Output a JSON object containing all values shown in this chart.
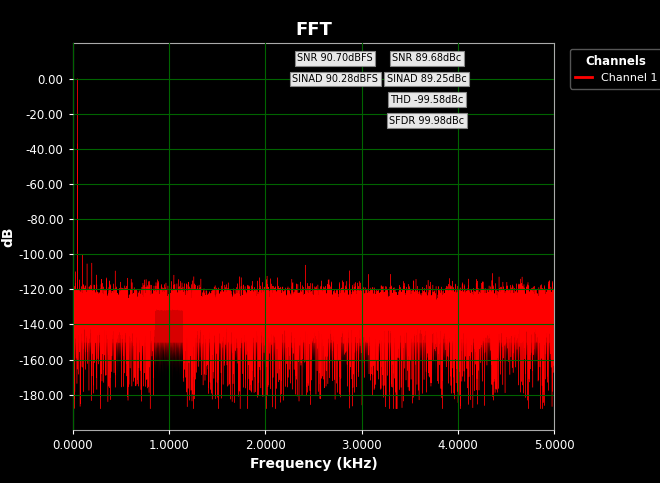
{
  "title": "FFT",
  "xlabel": "Frequency (kHz)",
  "ylabel": "dB",
  "xlim": [
    0,
    5.0
  ],
  "ylim": [
    -200,
    20
  ],
  "yticks": [
    0,
    -20,
    -40,
    -60,
    -80,
    -100,
    -120,
    -140,
    -160,
    -180
  ],
  "xticks": [
    0.0,
    1.0,
    2.0,
    3.0,
    4.0,
    5.0
  ],
  "xtick_labels": [
    "0.0000",
    "1.0000",
    "2.0000",
    "3.0000",
    "4.0000",
    "5.0000"
  ],
  "ytick_labels": [
    "0.00",
    "-20.00",
    "-40.00",
    "-60.00",
    "-80.00",
    "-100.00",
    "-120.00",
    "-140.00",
    "-160.00",
    "-180.00"
  ],
  "background_color": "#000000",
  "plot_bg_color": "#000000",
  "grid_color": "#006400",
  "signal_color": "#FF0000",
  "title_color": "#FFFFFF",
  "axis_label_color": "#FFFFFF",
  "tick_color": "#FFFFFF",
  "sample_rate_khz": 10.0,
  "fundamental_hz": 50,
  "noise_floor_mean": -133,
  "noise_floor_std": 6,
  "noise_floor_min": -188,
  "snr_dbfs": "SNR 90.70dBFS",
  "sinad_dbfs": "SINAD 90.28dBFS",
  "snr_dbc": "SNR 89.68dBc",
  "sinad_dbc": "SINAD 89.25dBc",
  "thd_dbc": "THD -99.58dBc",
  "sfdr_dbc": "SFDR 99.98dBc",
  "legend_title": "Channels",
  "legend_entry": "Channel 1",
  "figsize": [
    6.6,
    4.83
  ],
  "dpi": 100
}
